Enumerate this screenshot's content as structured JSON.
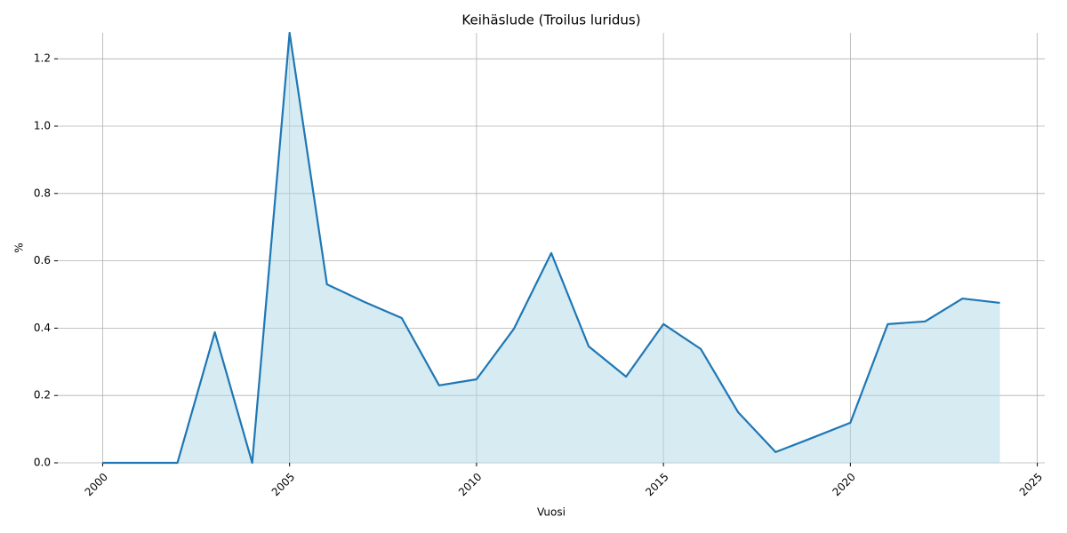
{
  "chart_data": {
    "type": "area",
    "title": "Keihäslude (Troilus luridus)",
    "xlabel": "Vuosi",
    "ylabel": "%",
    "x": [
      2000,
      2001,
      2002,
      2003,
      2004,
      2005,
      2006,
      2007,
      2008,
      2009,
      2010,
      2011,
      2012,
      2013,
      2014,
      2015,
      2016,
      2017,
      2018,
      2019,
      2020,
      2021,
      2022,
      2023,
      2024
    ],
    "series": [
      {
        "name": "Keihäslude",
        "color": "#1f77b4",
        "fill_color": "#add8e6",
        "values": [
          0,
          0,
          0,
          0.388,
          0,
          1.277,
          0.53,
          0.478,
          0.43,
          0.23,
          0.248,
          0.398,
          0.623,
          0.346,
          0.256,
          0.412,
          0.338,
          0.15,
          0.032,
          0.075,
          0.119,
          0.412,
          0.42,
          0.488,
          0.475
        ]
      }
    ],
    "xlim": [
      1998.8,
      2025.2
    ],
    "ylim": [
      0,
      1.277
    ],
    "xticks": [
      2000,
      2005,
      2010,
      2015,
      2020,
      2025
    ],
    "yticks": [
      {
        "value": 0,
        "label": "0.0"
      },
      0.2,
      0.4,
      0.6,
      0.8,
      {
        "value": 1,
        "label": "1.0"
      },
      1.2
    ],
    "grid": true
  }
}
